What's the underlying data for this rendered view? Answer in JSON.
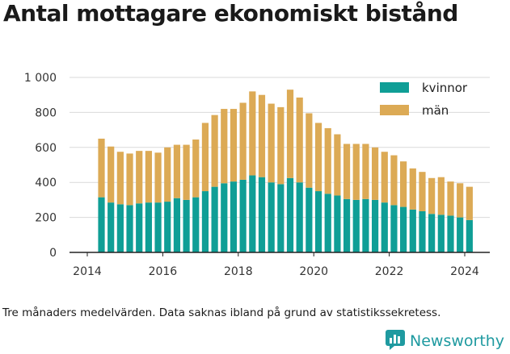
{
  "title": "Antal mottagare ekonomiskt bistånd",
  "note": "Tre månaders medelvärden. Data saknas ibland på grund av statistikssekretess.",
  "brand": {
    "name": "Newsworthy",
    "icon": "newsworthy-logo-icon",
    "color": "#1f9aa0"
  },
  "chart_data": {
    "type": "bar",
    "stacked": true,
    "x_start": "2014-Q2",
    "x_step": "quarter",
    "x_ticks": [
      "2014",
      "2016",
      "2018",
      "2020",
      "2022",
      "2024"
    ],
    "y_ticks": [
      "0",
      "200",
      "400",
      "600",
      "800",
      "1 000"
    ],
    "ylim": [
      0,
      1000
    ],
    "grid": true,
    "legend_position": "top-right",
    "series": [
      {
        "name": "kvinnor",
        "color": "#0f9e96",
        "values": [
          315,
          285,
          275,
          270,
          280,
          285,
          285,
          290,
          310,
          300,
          315,
          350,
          375,
          395,
          405,
          415,
          440,
          430,
          400,
          390,
          425,
          400,
          370,
          350,
          335,
          325,
          305,
          300,
          305,
          300,
          285,
          270,
          260,
          245,
          235,
          220,
          215,
          210,
          200,
          185
        ]
      },
      {
        "name": "män",
        "color": "#dcaa55",
        "values": [
          335,
          320,
          300,
          295,
          300,
          295,
          285,
          310,
          305,
          315,
          330,
          390,
          410,
          425,
          415,
          440,
          480,
          470,
          450,
          440,
          505,
          485,
          425,
          390,
          375,
          350,
          315,
          320,
          315,
          300,
          290,
          285,
          260,
          235,
          225,
          205,
          215,
          195,
          195,
          190
        ]
      }
    ]
  }
}
